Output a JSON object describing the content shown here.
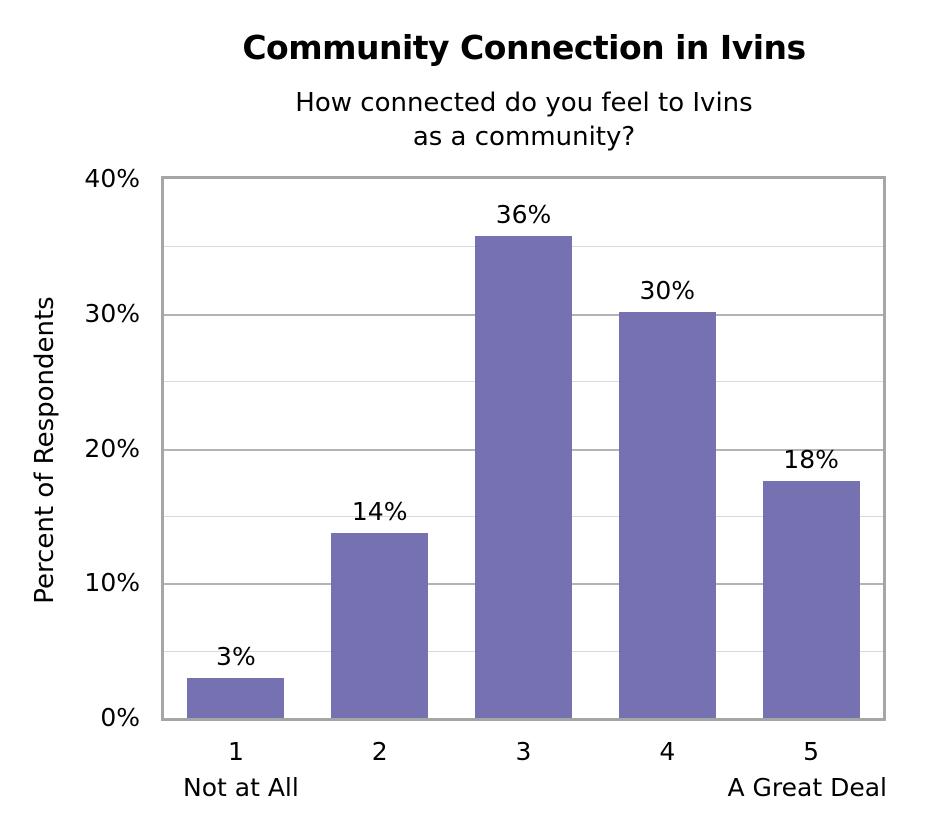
{
  "chart_data": {
    "type": "bar",
    "title": "Community Connection in Ivins",
    "subtitle_line1": "How connected do you feel to Ivins",
    "subtitle_line2": "as a community?",
    "xlabel": "",
    "ylabel": "Percent of Respondents",
    "categories": [
      "1",
      "2",
      "3",
      "4",
      "5"
    ],
    "category_sublabels": [
      "Not at All",
      "",
      "",
      "",
      "A Great Deal"
    ],
    "values": [
      3,
      14,
      36,
      30,
      18
    ],
    "value_labels": [
      "3%",
      "14%",
      "36%",
      "30%",
      "18%"
    ],
    "bar_values_precise": [
      3.0,
      13.7,
      35.8,
      30.1,
      17.6
    ],
    "ylim": [
      0,
      40
    ],
    "yticks": [
      "0%",
      "10%",
      "20%",
      "30%",
      "40%"
    ],
    "grid": true,
    "legend": null,
    "bar_color": "#7672b2"
  }
}
